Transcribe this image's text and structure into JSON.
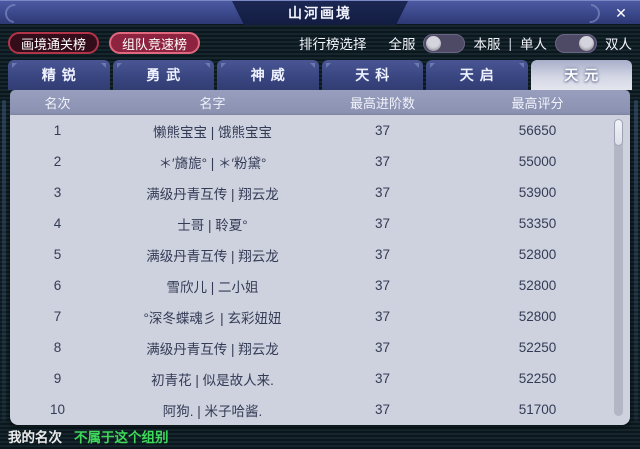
{
  "window": {
    "title": "山河画境",
    "close_icon": "✕"
  },
  "toolbar": {
    "rank_buttons": [
      {
        "label": "画境通关榜",
        "active": false
      },
      {
        "label": "组队竞速榜",
        "active": true
      }
    ],
    "selector_label": "排行榜选择",
    "server_toggle": {
      "left_label": "全服",
      "right_label": "本服",
      "knob": "left"
    },
    "separator": "|",
    "mode_toggle": {
      "left_label": "单人",
      "right_label": "双人",
      "knob": "right"
    }
  },
  "tabs": {
    "items": [
      "精锐",
      "勇武",
      "神威",
      "天科",
      "天启",
      "天元"
    ],
    "active_index": 5
  },
  "table": {
    "headers": [
      "名次",
      "名字",
      "最高进阶数",
      "最高评分"
    ],
    "rows": [
      {
        "rank": "1",
        "name": "懒熊宝宝 | 饿熊宝宝",
        "stage": "37",
        "score": "56650"
      },
      {
        "rank": "2",
        "name": "＊′旖旎° | ＊′粉黛°",
        "stage": "37",
        "score": "55000"
      },
      {
        "rank": "3",
        "name": "满级丹青互传 | 翔云龙",
        "stage": "37",
        "score": "53900"
      },
      {
        "rank": "4",
        "name": "士哥 | 聆夏°",
        "stage": "37",
        "score": "53350"
      },
      {
        "rank": "5",
        "name": "满级丹青互传 | 翔云龙",
        "stage": "37",
        "score": "52800"
      },
      {
        "rank": "6",
        "name": "雪欣儿 | 二小姐",
        "stage": "37",
        "score": "52800"
      },
      {
        "rank": "7",
        "name": "°深冬蝶魂彡 | 玄彩妞妞",
        "stage": "37",
        "score": "52800"
      },
      {
        "rank": "8",
        "name": "满级丹青互传 | 翔云龙",
        "stage": "37",
        "score": "52250"
      },
      {
        "rank": "9",
        "name": "初青花 | 似是故人来.",
        "stage": "37",
        "score": "52250"
      },
      {
        "rank": "10",
        "name": "阿狗. | 米子哈酱.",
        "stage": "37",
        "score": "51700"
      }
    ]
  },
  "footer": {
    "label": "我的名次",
    "status": "不属于这个组别"
  },
  "colors": {
    "titlebar_blue": "#3e4b8f",
    "button_border_red": "#b13448",
    "button_active_red": "#8e2340",
    "tab_blue": "#3a4681",
    "tab_active_light": "#d3d6e4",
    "table_header": "#8a90b0",
    "table_body": "#ced2df",
    "status_green": "#3fd85a"
  }
}
